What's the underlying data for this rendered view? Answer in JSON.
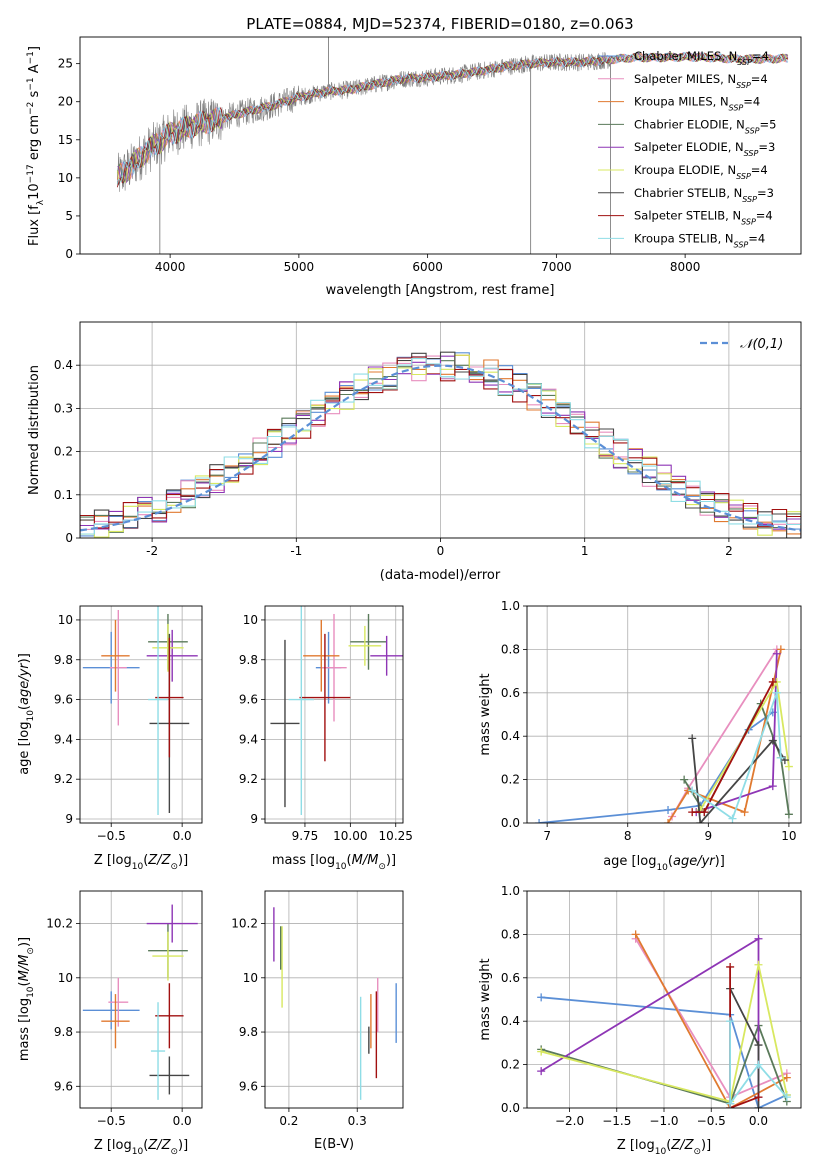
{
  "figure_title": "PLATE=0884, MJD=52374, FIBERID=0180, z=0.063",
  "colors": {
    "Chabrier MILES": "#5b8fd6",
    "Salpeter MILES": "#e88fbf",
    "Kroupa MILES": "#e07a30",
    "Chabrier ELODIE": "#5a7a5a",
    "Salpeter ELODIE": "#8e35b5",
    "Kroupa ELODIE": "#d8e860",
    "Chabrier STELIB": "#454545",
    "Salpeter STELIB": "#a11010",
    "Kroupa STELIB": "#8fdde6"
  },
  "chart_data": [
    {
      "type": "line",
      "xlabel": "wavelength [Angstrom, rest frame]",
      "ylabel": "Flux [fλ10⁻¹⁷ erg cm⁻² s⁻¹ A⁻¹]",
      "xlim": [
        3300,
        8900
      ],
      "ylim": [
        0,
        28.5
      ],
      "xticks": [
        4000,
        5000,
        6000,
        7000,
        8000
      ],
      "yticks": [
        0,
        5,
        10,
        15,
        20,
        25
      ],
      "legend_position": "right",
      "legend": [
        {
          "model": "Chabrier MILES",
          "nssp": "4"
        },
        {
          "model": "Salpeter MILES",
          "nssp": "4"
        },
        {
          "model": "Kroupa MILES",
          "nssp": "4"
        },
        {
          "model": "Chabrier ELODIE",
          "nssp": "5"
        },
        {
          "model": "Salpeter ELODIE",
          "nssp": "3"
        },
        {
          "model": "Kroupa ELODIE",
          "nssp": "4"
        },
        {
          "model": "Chabrier STELIB",
          "nssp": "3"
        },
        {
          "model": "Salpeter STELIB",
          "nssp": "4"
        },
        {
          "model": "Kroupa STELIB",
          "nssp": "4"
        }
      ],
      "legend_label_prefix": "N",
      "legend_label_sub": "SSP",
      "data_color": "#808080",
      "continuum": [
        [
          3590,
          10
        ],
        [
          3700,
          11.5
        ],
        [
          3800,
          13.3
        ],
        [
          3900,
          14.5
        ],
        [
          4000,
          15.8
        ],
        [
          4200,
          17
        ],
        [
          4400,
          17.8
        ],
        [
          4600,
          18.7
        ],
        [
          4800,
          19.5
        ],
        [
          5000,
          20.6
        ],
        [
          5200,
          21.3
        ],
        [
          5400,
          21.6
        ],
        [
          5600,
          22.3
        ],
        [
          5800,
          23
        ],
        [
          6000,
          23.2
        ],
        [
          6200,
          23.5
        ],
        [
          6400,
          24
        ],
        [
          6600,
          24.6
        ],
        [
          6800,
          25
        ],
        [
          7000,
          25.2
        ],
        [
          7200,
          25.2
        ],
        [
          7400,
          25.5
        ],
        [
          7600,
          25.8
        ],
        [
          7800,
          25.8
        ],
        [
          8000,
          25.9
        ],
        [
          8200,
          25.8
        ],
        [
          8400,
          25.6
        ],
        [
          8600,
          25.6
        ],
        [
          8800,
          25.7
        ]
      ],
      "data_range": [
        3590,
        7420
      ],
      "model_range": [
        3590,
        8800
      ],
      "spikes": [
        [
          3920,
          0
        ],
        [
          5230,
          28.5
        ],
        [
          6800,
          0
        ],
        [
          7420,
          0
        ]
      ]
    },
    {
      "type": "histogram",
      "xlabel": "(data-model)/error",
      "ylabel": "Normed distribution",
      "xlim": [
        -2.5,
        2.5
      ],
      "ylim": [
        0,
        0.5
      ],
      "xticks": [
        -2,
        -1,
        0,
        1,
        2
      ],
      "yticks": [
        0,
        0.1,
        0.2,
        0.3,
        0.4
      ],
      "grid": true,
      "reference_label": "𝒩(0,1)",
      "reference_color": "#5b8fd6",
      "bin_width": 0.1,
      "bin_start": -2.6,
      "legend_position": "top-right"
    },
    {
      "type": "errorbar",
      "xlabel": "Z [log10(Z/Z⊙)]",
      "ylabel": "age  [log10(age/yr)]",
      "xlim": [
        -0.72,
        0.14
      ],
      "ylim": [
        8.98,
        10.07
      ],
      "xticks": [
        -0.5,
        0.0
      ],
      "xtick_labels": [
        "−0.5",
        "0.0"
      ],
      "yticks": [
        9.0,
        9.2,
        9.4,
        9.6,
        9.8,
        10.0
      ],
      "grid": true,
      "points": [
        {
          "model": "Chabrier MILES",
          "x": -0.5,
          "xerr": 0.2,
          "y": 9.76,
          "yerr": 0.18
        },
        {
          "model": "Salpeter MILES",
          "x": -0.45,
          "xerr": 0.06,
          "y": 9.76,
          "yerr": 0.29
        },
        {
          "model": "Kroupa MILES",
          "x": -0.47,
          "xerr": 0.1,
          "y": 9.82,
          "yerr": 0.18
        },
        {
          "model": "Chabrier ELODIE",
          "x": -0.1,
          "xerr": 0.14,
          "y": 9.89,
          "yerr": 0.14
        },
        {
          "model": "Salpeter ELODIE",
          "x": -0.07,
          "xerr": 0.18,
          "y": 9.82,
          "yerr": 0.13
        },
        {
          "model": "Kroupa ELODIE",
          "x": -0.1,
          "xerr": 0.11,
          "y": 9.86,
          "yerr": 0.12
        },
        {
          "model": "Chabrier STELIB",
          "x": -0.09,
          "xerr": 0.14,
          "y": 9.48,
          "yerr": 0.45
        },
        {
          "model": "Salpeter STELIB",
          "x": -0.09,
          "xerr": 0.1,
          "y": 9.61,
          "yerr": 0.3
        },
        {
          "model": "Kroupa STELIB",
          "x": -0.17,
          "xerr": 0.07,
          "y": 9.6,
          "yerr": 0.58
        }
      ]
    },
    {
      "type": "errorbar",
      "xlabel": "mass [log10(M/M⊙)]",
      "ylabel": "",
      "xlim": [
        9.53,
        10.29
      ],
      "ylim": [
        8.98,
        10.07
      ],
      "xticks": [
        9.75,
        10.0,
        10.25
      ],
      "xtick_labels": [
        "9.75",
        "10.00",
        "10.25"
      ],
      "yticks": [
        9.0,
        9.2,
        9.4,
        9.6,
        9.8,
        10.0
      ],
      "grid": true,
      "points": [
        {
          "model": "Chabrier MILES",
          "x": 9.88,
          "xerr": 0.07,
          "y": 9.76,
          "yerr": 0.18
        },
        {
          "model": "Salpeter MILES",
          "x": 9.91,
          "xerr": 0.07,
          "y": 9.76,
          "yerr": 0.27
        },
        {
          "model": "Kroupa MILES",
          "x": 9.84,
          "xerr": 0.1,
          "y": 9.82,
          "yerr": 0.18
        },
        {
          "model": "Chabrier ELODIE",
          "x": 10.1,
          "xerr": 0.1,
          "y": 9.89,
          "yerr": 0.14
        },
        {
          "model": "Salpeter ELODIE",
          "x": 10.2,
          "xerr": 0.09,
          "y": 9.82,
          "yerr": 0.1
        },
        {
          "model": "Kroupa ELODIE",
          "x": 10.08,
          "xerr": 0.09,
          "y": 9.87,
          "yerr": 0.1
        },
        {
          "model": "Chabrier STELIB",
          "x": 9.64,
          "xerr": 0.08,
          "y": 9.48,
          "yerr": 0.42
        },
        {
          "model": "Salpeter STELIB",
          "x": 9.86,
          "xerr": 0.14,
          "y": 9.61,
          "yerr": 0.32
        },
        {
          "model": "Kroupa STELIB",
          "x": 9.73,
          "xerr": 0.07,
          "y": 9.6,
          "yerr": 0.58
        }
      ]
    },
    {
      "type": "line",
      "xlabel": "age  [log10(age/yr)]",
      "ylabel": "mass weight",
      "xlim": [
        6.75,
        10.15
      ],
      "ylim": [
        0,
        1.0
      ],
      "xticks": [
        7,
        8,
        9,
        10
      ],
      "yticks": [
        0,
        0.2,
        0.4,
        0.6,
        0.8,
        1.0
      ],
      "ytick_labels": [
        "0.0",
        "0.2",
        "0.4",
        "0.6",
        "0.8",
        "1.0"
      ],
      "grid": true,
      "series": [
        {
          "model": "Chabrier MILES",
          "points": [
            [
              6.9,
              0.0
            ],
            [
              8.5,
              0.06
            ],
            [
              8.9,
              0.08
            ],
            [
              9.5,
              0.43
            ],
            [
              9.8,
              0.51
            ]
          ]
        },
        {
          "model": "Salpeter MILES",
          "points": [
            [
              8.55,
              0.03
            ],
            [
              8.75,
              0.16
            ],
            [
              9.85,
              0.8
            ]
          ]
        },
        {
          "model": "Kroupa MILES",
          "points": [
            [
              8.5,
              0.0
            ],
            [
              8.75,
              0.15
            ],
            [
              9.45,
              0.05
            ],
            [
              9.9,
              0.8
            ]
          ]
        },
        {
          "model": "Chabrier ELODIE",
          "points": [
            [
              8.7,
              0.2
            ],
            [
              8.95,
              0.05
            ],
            [
              9.65,
              0.55
            ],
            [
              9.9,
              0.3
            ],
            [
              10.0,
              0.04
            ]
          ]
        },
        {
          "model": "Salpeter ELODIE",
          "points": [
            [
              8.85,
              0.05
            ],
            [
              9.8,
              0.17
            ],
            [
              9.85,
              0.78
            ]
          ]
        },
        {
          "model": "Kroupa ELODIE",
          "points": [
            [
              8.9,
              0.06
            ],
            [
              9.85,
              0.65
            ],
            [
              10.0,
              0.26
            ]
          ]
        },
        {
          "model": "Chabrier STELIB",
          "points": [
            [
              8.8,
              0.39
            ],
            [
              8.9,
              0.0
            ],
            [
              9.8,
              0.38
            ],
            [
              9.95,
              0.29
            ]
          ]
        },
        {
          "model": "Salpeter STELIB",
          "points": [
            [
              8.8,
              0.05
            ],
            [
              8.95,
              0.05
            ],
            [
              9.8,
              0.65
            ]
          ]
        },
        {
          "model": "Kroupa STELIB",
          "points": [
            [
              8.8,
              0.15
            ],
            [
              9.3,
              0.02
            ],
            [
              9.85,
              0.6
            ],
            [
              9.9,
              0.3
            ]
          ]
        }
      ]
    },
    {
      "type": "errorbar",
      "xlabel": "Z [log10(Z/Z⊙)]",
      "ylabel": "mass [log10(M/M⊙)]",
      "xlim": [
        -0.72,
        0.14
      ],
      "ylim": [
        9.52,
        10.32
      ],
      "xticks": [
        -0.5,
        0.0
      ],
      "xtick_labels": [
        "−0.5",
        "0.0"
      ],
      "yticks": [
        9.6,
        9.8,
        10.0,
        10.2
      ],
      "grid": true,
      "points": [
        {
          "model": "Chabrier MILES",
          "x": -0.5,
          "xerr": 0.2,
          "y": 9.88,
          "yerr": 0.07
        },
        {
          "model": "Salpeter MILES",
          "x": -0.45,
          "xerr": 0.07,
          "y": 9.91,
          "yerr": 0.09
        },
        {
          "model": "Kroupa MILES",
          "x": -0.47,
          "xerr": 0.1,
          "y": 9.84,
          "yerr": 0.1
        },
        {
          "model": "Chabrier ELODIE",
          "x": -0.1,
          "xerr": 0.14,
          "y": 10.1,
          "yerr": 0.1
        },
        {
          "model": "Salpeter ELODIE",
          "x": -0.07,
          "xerr": 0.18,
          "y": 10.2,
          "yerr": 0.07
        },
        {
          "model": "Kroupa ELODIE",
          "x": -0.1,
          "xerr": 0.11,
          "y": 10.08,
          "yerr": 0.09
        },
        {
          "model": "Chabrier STELIB",
          "x": -0.09,
          "xerr": 0.14,
          "y": 9.64,
          "yerr": 0.07
        },
        {
          "model": "Salpeter STELIB",
          "x": -0.09,
          "xerr": 0.1,
          "y": 9.86,
          "yerr": 0.12
        },
        {
          "model": "Kroupa STELIB",
          "x": -0.17,
          "xerr": 0.05,
          "y": 9.73,
          "yerr": 0.18
        }
      ]
    },
    {
      "type": "errorbar",
      "xlabel": "E(B-V)",
      "ylabel": "",
      "xlim": [
        0.165,
        0.367
      ],
      "ylim": [
        9.52,
        10.32
      ],
      "xticks": [
        0.2,
        0.3
      ],
      "xtick_labels": [
        "0.2",
        "0.3"
      ],
      "yticks": [
        9.6,
        9.8,
        10.0,
        10.2
      ],
      "grid": true,
      "points": [
        {
          "model": "Chabrier MILES",
          "x": 0.357,
          "xerr": 0,
          "y": 9.87,
          "yerr": 0.11
        },
        {
          "model": "Salpeter MILES",
          "x": 0.33,
          "xerr": 0,
          "y": 9.9,
          "yerr": 0.1
        },
        {
          "model": "Kroupa MILES",
          "x": 0.32,
          "xerr": 0,
          "y": 9.84,
          "yerr": 0.1
        },
        {
          "model": "Chabrier ELODIE",
          "x": 0.188,
          "xerr": 0,
          "y": 10.11,
          "yerr": 0.08
        },
        {
          "model": "Salpeter ELODIE",
          "x": 0.178,
          "xerr": 0,
          "y": 10.16,
          "yerr": 0.1
        },
        {
          "model": "Kroupa ELODIE",
          "x": 0.19,
          "xerr": 0,
          "y": 10.04,
          "yerr": 0.15
        },
        {
          "model": "Chabrier STELIB",
          "x": 0.317,
          "xerr": 0,
          "y": 9.77,
          "yerr": 0.05
        },
        {
          "model": "Salpeter STELIB",
          "x": 0.328,
          "xerr": 0,
          "y": 9.79,
          "yerr": 0.16
        },
        {
          "model": "Kroupa STELIB",
          "x": 0.305,
          "xerr": 0,
          "y": 9.74,
          "yerr": 0.19
        }
      ]
    },
    {
      "type": "line",
      "xlabel": "Z [log10(Z/Z⊙)]",
      "ylabel": "mass weight",
      "xlim": [
        -2.45,
        0.45
      ],
      "ylim": [
        0,
        1.0
      ],
      "xticks": [
        -2.0,
        -1.5,
        -1.0,
        -0.5,
        0.0
      ],
      "xtick_labels": [
        "−2.0",
        "−1.5",
        "−1.0",
        "−0.5",
        "0.0"
      ],
      "yticks": [
        0,
        0.2,
        0.4,
        0.6,
        0.8,
        1.0
      ],
      "ytick_labels": [
        "0.0",
        "0.2",
        "0.4",
        "0.6",
        "0.8",
        "1.0"
      ],
      "grid": true,
      "series": [
        {
          "model": "Chabrier MILES",
          "points": [
            [
              -2.3,
              0.51
            ],
            [
              -0.3,
              0.43
            ],
            [
              0.0,
              0.0
            ],
            [
              0.3,
              0.06
            ]
          ]
        },
        {
          "model": "Salpeter MILES",
          "points": [
            [
              -1.3,
              0.78
            ],
            [
              -0.3,
              0.05
            ],
            [
              0.3,
              0.16
            ]
          ]
        },
        {
          "model": "Kroupa MILES",
          "points": [
            [
              -1.3,
              0.8
            ],
            [
              -0.3,
              0.0
            ],
            [
              0.3,
              0.14
            ]
          ]
        },
        {
          "model": "Chabrier ELODIE",
          "points": [
            [
              -2.3,
              0.27
            ],
            [
              -0.3,
              0.02
            ],
            [
              0.0,
              0.38
            ],
            [
              0.3,
              0.03
            ]
          ]
        },
        {
          "model": "Salpeter ELODIE",
          "points": [
            [
              -2.3,
              0.17
            ],
            [
              0.0,
              0.78
            ],
            [
              0.0,
              0.05
            ]
          ]
        },
        {
          "model": "Kroupa ELODIE",
          "points": [
            [
              -2.3,
              0.26
            ],
            [
              -0.3,
              0.03
            ],
            [
              0.0,
              0.66
            ],
            [
              0.3,
              0.06
            ]
          ]
        },
        {
          "model": "Chabrier STELIB",
          "points": [
            [
              -0.3,
              0.55
            ],
            [
              0.0,
              0.29
            ],
            [
              0.0,
              0.0
            ]
          ]
        },
        {
          "model": "Salpeter STELIB",
          "points": [
            [
              -0.3,
              0.65
            ],
            [
              -0.3,
              0.0
            ],
            [
              0.0,
              0.05
            ]
          ]
        },
        {
          "model": "Kroupa STELIB",
          "points": [
            [
              -0.3,
              0.4
            ],
            [
              -0.3,
              0.02
            ],
            [
              0.0,
              0.2
            ],
            [
              0.3,
              0.05
            ]
          ]
        }
      ]
    }
  ]
}
